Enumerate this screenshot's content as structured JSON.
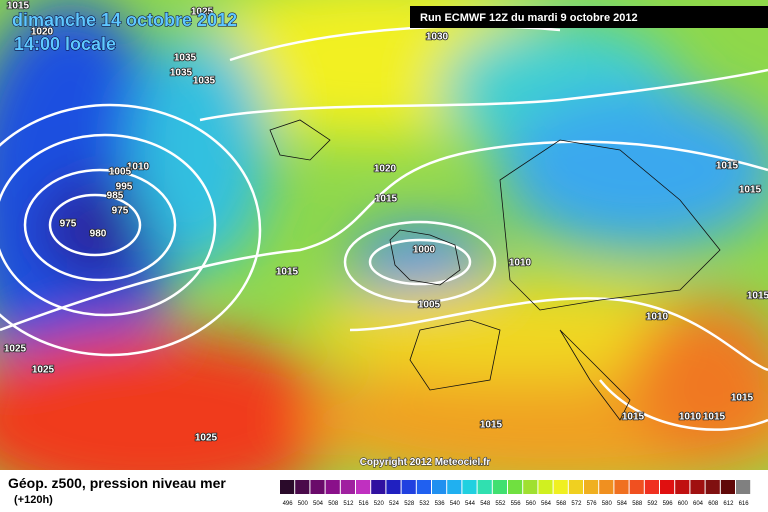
{
  "header": {
    "date": "dimanche 14 octobre 2012",
    "time": "14:00 locale",
    "run": "Run ECMWF 12Z du mardi 9 octobre 2012"
  },
  "copyright": "Copyright 2012 Meteociel.fr",
  "footer": {
    "title": "Géop. z500, pression niveau mer",
    "lead": "(+120h)"
  },
  "isobar_labels": [
    1015,
    1020,
    1025,
    1030,
    1035,
    1035,
    1035,
    1010,
    1005,
    995,
    985,
    975,
    975,
    980,
    1020,
    1015,
    1000,
    1010,
    1005,
    1015,
    1025,
    1025,
    1025,
    1015,
    1010,
    1015,
    1015,
    1015,
    1015,
    1015,
    1010,
    1015
  ],
  "legend": {
    "levels": [
      496,
      500,
      504,
      508,
      512,
      516,
      520,
      524,
      528,
      532,
      536,
      540,
      544,
      548,
      552,
      556,
      560,
      564,
      568,
      572,
      576,
      580,
      584,
      588,
      592,
      596,
      600,
      604,
      608,
      612,
      616
    ]
  }
}
